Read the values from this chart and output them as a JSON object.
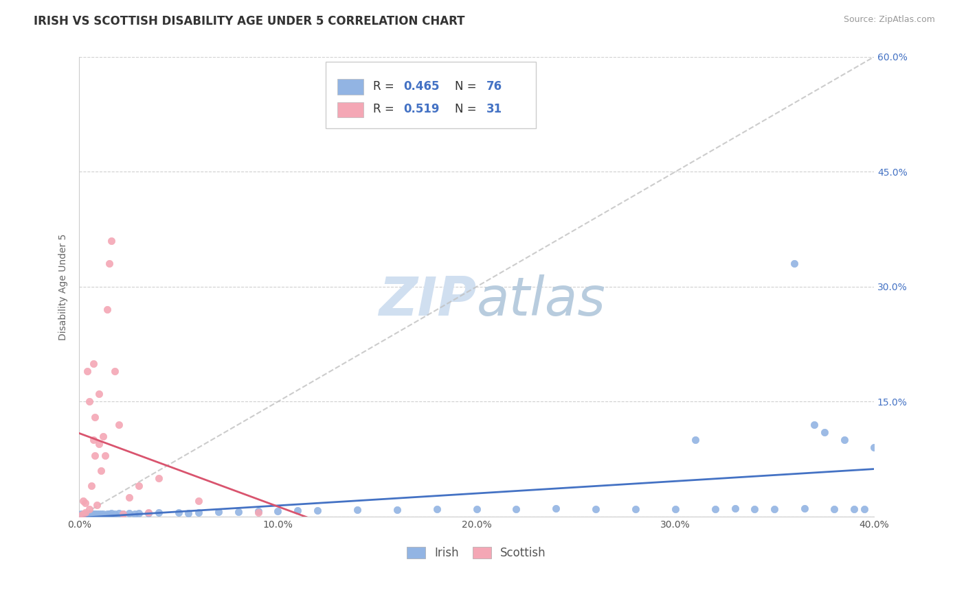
{
  "title": "IRISH VS SCOTTISH DISABILITY AGE UNDER 5 CORRELATION CHART",
  "source": "Source: ZipAtlas.com",
  "ylabel": "Disability Age Under 5",
  "xlim": [
    0.0,
    0.4
  ],
  "ylim": [
    0.0,
    0.6
  ],
  "xticks": [
    0.0,
    0.1,
    0.2,
    0.3,
    0.4
  ],
  "yticks": [
    0.0,
    0.15,
    0.3,
    0.45,
    0.6
  ],
  "xtick_labels": [
    "0.0%",
    "10.0%",
    "20.0%",
    "30.0%",
    "40.0%"
  ],
  "ytick_labels": [
    "",
    "15.0%",
    "30.0%",
    "45.0%",
    "60.0%"
  ],
  "irish_color": "#92b4e3",
  "scottish_color": "#f4a7b5",
  "irish_line_color": "#4472c4",
  "scottish_line_color": "#d9546e",
  "ref_line_color": "#c0c0c0",
  "watermark_color": "#d0dff0",
  "irish_R": 0.465,
  "irish_N": 76,
  "scottish_R": 0.519,
  "scottish_N": 31,
  "irish_x": [
    0.001,
    0.001,
    0.001,
    0.002,
    0.002,
    0.002,
    0.002,
    0.003,
    0.003,
    0.003,
    0.003,
    0.004,
    0.004,
    0.004,
    0.005,
    0.005,
    0.005,
    0.005,
    0.006,
    0.006,
    0.006,
    0.007,
    0.007,
    0.008,
    0.008,
    0.008,
    0.009,
    0.009,
    0.01,
    0.01,
    0.011,
    0.012,
    0.013,
    0.014,
    0.015,
    0.016,
    0.018,
    0.02,
    0.022,
    0.025,
    0.028,
    0.03,
    0.035,
    0.04,
    0.05,
    0.055,
    0.06,
    0.07,
    0.08,
    0.09,
    0.1,
    0.11,
    0.12,
    0.14,
    0.16,
    0.18,
    0.2,
    0.22,
    0.24,
    0.26,
    0.28,
    0.3,
    0.31,
    0.32,
    0.33,
    0.34,
    0.35,
    0.36,
    0.365,
    0.37,
    0.375,
    0.38,
    0.385,
    0.39,
    0.395,
    0.4
  ],
  "irish_y": [
    0.002,
    0.003,
    0.001,
    0.002,
    0.001,
    0.003,
    0.002,
    0.001,
    0.002,
    0.003,
    0.001,
    0.002,
    0.003,
    0.001,
    0.002,
    0.001,
    0.003,
    0.002,
    0.002,
    0.003,
    0.001,
    0.002,
    0.003,
    0.001,
    0.002,
    0.003,
    0.002,
    0.003,
    0.002,
    0.003,
    0.003,
    0.003,
    0.002,
    0.003,
    0.003,
    0.004,
    0.003,
    0.004,
    0.003,
    0.004,
    0.003,
    0.004,
    0.004,
    0.005,
    0.005,
    0.004,
    0.005,
    0.006,
    0.006,
    0.007,
    0.007,
    0.008,
    0.008,
    0.009,
    0.009,
    0.01,
    0.01,
    0.01,
    0.011,
    0.01,
    0.01,
    0.01,
    0.1,
    0.01,
    0.011,
    0.01,
    0.01,
    0.33,
    0.011,
    0.12,
    0.11,
    0.01,
    0.1,
    0.01,
    0.01,
    0.09
  ],
  "scottish_x": [
    0.001,
    0.002,
    0.002,
    0.003,
    0.003,
    0.004,
    0.005,
    0.005,
    0.006,
    0.007,
    0.007,
    0.008,
    0.008,
    0.009,
    0.01,
    0.01,
    0.011,
    0.012,
    0.013,
    0.014,
    0.015,
    0.016,
    0.018,
    0.02,
    0.022,
    0.025,
    0.03,
    0.035,
    0.04,
    0.06,
    0.09
  ],
  "scottish_y": [
    0.002,
    0.003,
    0.02,
    0.005,
    0.018,
    0.19,
    0.15,
    0.01,
    0.04,
    0.1,
    0.2,
    0.08,
    0.13,
    0.015,
    0.095,
    0.16,
    0.06,
    0.105,
    0.08,
    0.27,
    0.33,
    0.36,
    0.19,
    0.12,
    0.003,
    0.025,
    0.04,
    0.005,
    0.05,
    0.02,
    0.005
  ],
  "title_fontsize": 12,
  "axis_fontsize": 10,
  "tick_fontsize": 10,
  "source_fontsize": 9
}
